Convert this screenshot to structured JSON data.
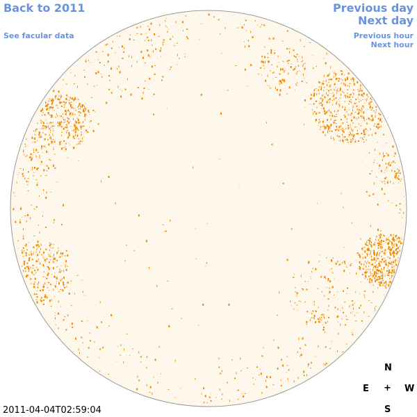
{
  "nav": {
    "back": "Back to 2011",
    "facular": "See facular data",
    "prev_day": "Previous day",
    "next_day": "Next day",
    "prev_hour": "Previous hour",
    "next_hour": "Next hour"
  },
  "compass": {
    "north": "N",
    "east": "E",
    "center": "+",
    "west": "W",
    "south": "S"
  },
  "timestamp": "2011-04-04T02:59:04",
  "colors": {
    "link": "#6b93dc",
    "disk_fill": "#fdf7ec",
    "disk_edge": "#999999",
    "marks": "#f08a00"
  }
}
